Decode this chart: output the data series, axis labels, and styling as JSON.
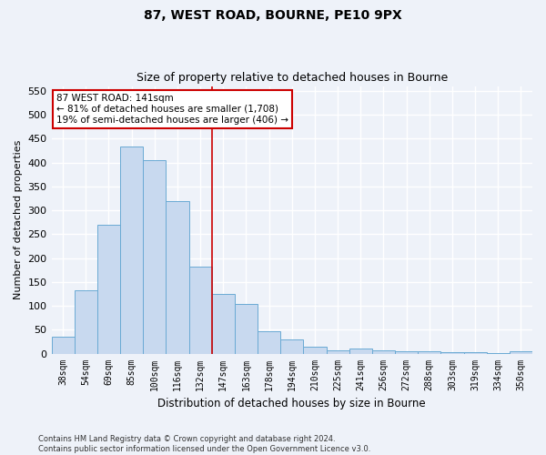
{
  "title1": "87, WEST ROAD, BOURNE, PE10 9PX",
  "title2": "Size of property relative to detached houses in Bourne",
  "xlabel": "Distribution of detached houses by size in Bourne",
  "ylabel": "Number of detached properties",
  "categories": [
    "38sqm",
    "54sqm",
    "69sqm",
    "85sqm",
    "100sqm",
    "116sqm",
    "132sqm",
    "147sqm",
    "163sqm",
    "178sqm",
    "194sqm",
    "210sqm",
    "225sqm",
    "241sqm",
    "256sqm",
    "272sqm",
    "288sqm",
    "303sqm",
    "319sqm",
    "334sqm",
    "350sqm"
  ],
  "values": [
    35,
    133,
    270,
    433,
    405,
    320,
    182,
    125,
    103,
    46,
    30,
    15,
    7,
    10,
    6,
    4,
    4,
    3,
    3,
    2,
    5
  ],
  "bar_color": "#c8d9ef",
  "bar_edge_color": "#6aaad4",
  "vline_color": "#cc0000",
  "annotation_text": "87 WEST ROAD: 141sqm\n← 81% of detached houses are smaller (1,708)\n19% of semi-detached houses are larger (406) →",
  "annotation_box_color": "white",
  "annotation_box_edge_color": "#cc0000",
  "ylim": [
    0,
    560
  ],
  "yticks": [
    0,
    50,
    100,
    150,
    200,
    250,
    300,
    350,
    400,
    450,
    500,
    550
  ],
  "footer_line1": "Contains HM Land Registry data © Crown copyright and database right 2024.",
  "footer_line2": "Contains public sector information licensed under the Open Government Licence v3.0.",
  "background_color": "#eef2f9",
  "grid_color": "white"
}
